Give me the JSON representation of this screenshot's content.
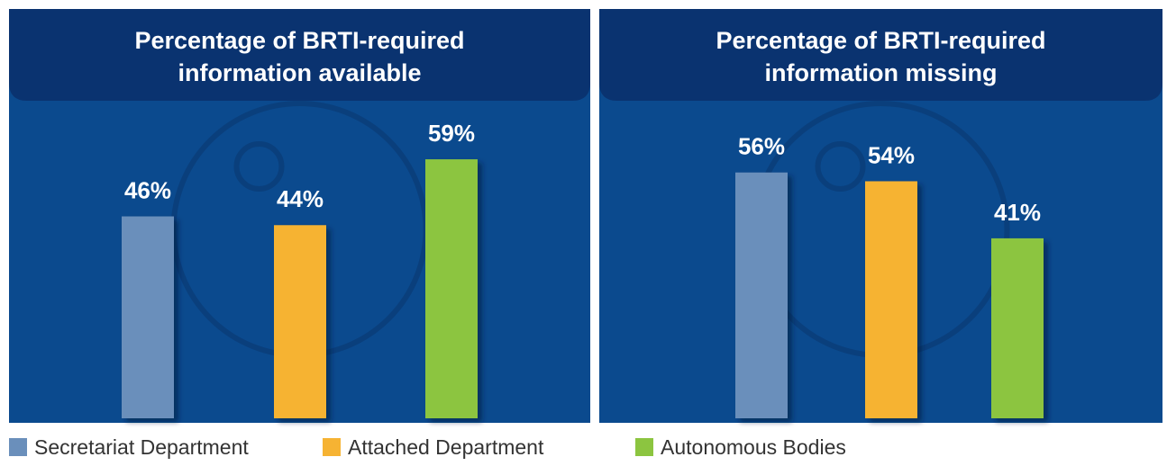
{
  "chart_data": [
    {
      "type": "bar",
      "title": [
        "Percentage of BRTI-required",
        "information available"
      ],
      "values": [
        46,
        44,
        59
      ],
      "value_labels": [
        "46%",
        "44%",
        "59%"
      ]
    },
    {
      "type": "bar",
      "title": [
        "Percentage of BRTI-required",
        "information missing"
      ],
      "values": [
        56,
        54,
        41
      ],
      "value_labels": [
        "56%",
        "54%",
        "41%"
      ]
    }
  ],
  "legend": [
    {
      "label": "Secretariat Department",
      "color": "#6a8fbb"
    },
    {
      "label": "Attached Department",
      "color": "#f6b333"
    },
    {
      "label": "Autonomous Bodies",
      "color": "#8cc540"
    }
  ]
}
